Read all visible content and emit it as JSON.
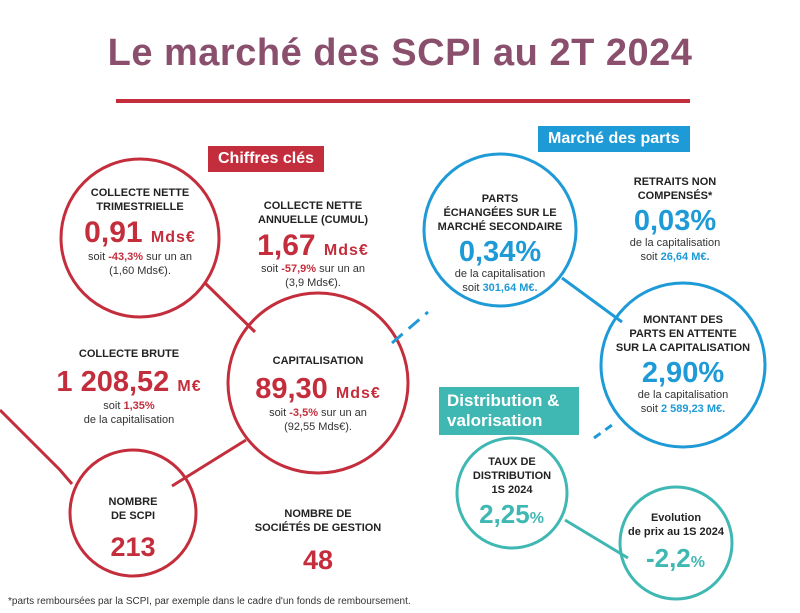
{
  "title": "Le marché des SCPI au 2T 2024",
  "tags": {
    "chiffres_cles": "Chiffres clés",
    "marche_parts": "Marché des parts",
    "distribution": "Distribution & valorisation"
  },
  "collecte_nette_trim": {
    "label1": "COLLECTE NETTE",
    "label2": "TRIMESTRIELLE",
    "value": "0,91",
    "unit": "Mds€",
    "sub1_pre": "soit ",
    "sub1_bold": "-43,3%",
    "sub1_post": " sur un an",
    "sub2": "(1,60 Mds€)."
  },
  "collecte_nette_annuelle": {
    "label1": "COLLECTE NETTE",
    "label2": "ANNUELLE (CUMUL)",
    "value": "1,67",
    "unit": "Mds€",
    "sub1_pre": "soit ",
    "sub1_bold": "-57,9%",
    "sub1_post": " sur un an",
    "sub2": "(3,9 Mds€)."
  },
  "collecte_brute": {
    "label": "COLLECTE BRUTE",
    "value": "1 208,52",
    "unit": "M€",
    "sub1_pre": "soit ",
    "sub1_bold": "1,35%",
    "sub2": "de la capitalisation"
  },
  "capitalisation": {
    "label": "CAPITALISATION",
    "value": "89,30",
    "unit": "Mds€",
    "sub1_pre": "soit ",
    "sub1_bold": "-3,5%",
    "sub1_post": " sur un an",
    "sub2": "(92,55 Mds€)."
  },
  "nombre_scpi": {
    "label1": "NOMBRE",
    "label2": "DE SCPI",
    "value": "213"
  },
  "nombre_societes": {
    "label1": "NOMBRE DE",
    "label2": "SOCIÉTÉS DE GESTION",
    "value": "48"
  },
  "parts_echangees": {
    "label1": "PARTS",
    "label2": "ÉCHANGÉES SUR LE",
    "label3": "MARCHÉ SECONDAIRE",
    "value": "0,34%",
    "sub1": "de la capitalisation",
    "sub2_pre": "soit ",
    "sub2_bold": "301,64 M€."
  },
  "retraits": {
    "label1": "RETRAITS NON",
    "label2": "COMPENSÉS*",
    "value": "0,03%",
    "sub1": "de la capitalisation",
    "sub2_pre": "soit ",
    "sub2_bold": "26,64 M€."
  },
  "montant_parts": {
    "label1": "MONTANT DES",
    "label2": "PARTS EN ATTENTE",
    "label3": "SUR LA CAPITALISATION",
    "value": "2,90%",
    "sub1": "de la capitalisation",
    "sub2_pre": "soit ",
    "sub2_bold": "2 589,23 M€."
  },
  "taux_distribution": {
    "label1": "TAUX DE",
    "label2": "DISTRIBUTION",
    "label3": "1S 2024",
    "value": "2,25",
    "unit": "%"
  },
  "evolution_prix": {
    "label1": "Evolution",
    "label2": "de prix au 1S 2024",
    "value": "-2,2",
    "unit": "%"
  },
  "footnote": "*parts remboursées par la SCPI, par exemple dans le cadre d'un fonds de remboursement.",
  "colors": {
    "red": "#c42e3c",
    "blue": "#1e9ad6",
    "teal": "#3fb8b3",
    "title": "#8b4f6e"
  }
}
